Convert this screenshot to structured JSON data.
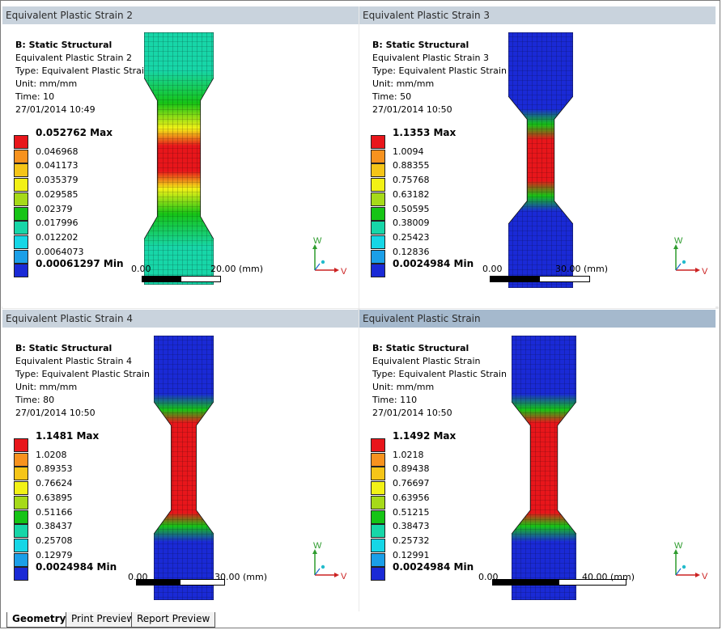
{
  "panes": [
    {
      "title": "Equivalent Plastic Strain 2",
      "system": "B: Static Structural",
      "result": "Equivalent Plastic Strain 2",
      "type": "Type: Equivalent Plastic Strain",
      "unit": "Unit: mm/mm",
      "time": "Time: 10",
      "date": "27/01/2014 10:49",
      "legend": [
        "0.052762 Max",
        "0.046968",
        "0.041173",
        "0.035379",
        "0.029585",
        "0.02379",
        "0.017996",
        "0.012202",
        "0.0064073",
        "0.00061297 Min"
      ],
      "scale_start": "0.00",
      "scale_end": "20.00 (mm)",
      "contour": "uniform",
      "active": false
    },
    {
      "title": "Equivalent Plastic Strain 3",
      "system": "B: Static Structural",
      "result": "Equivalent Plastic Strain 3",
      "type": "Type: Equivalent Plastic Strain",
      "unit": "Unit: mm/mm",
      "time": "Time: 50",
      "date": "27/01/2014 10:50",
      "legend": [
        "1.1353 Max",
        "1.0094",
        "0.88355",
        "0.75768",
        "0.63182",
        "0.50595",
        "0.38009",
        "0.25423",
        "0.12836",
        "0.0024984 Min"
      ],
      "scale_start": "0.00",
      "scale_end": "30.00 (mm)",
      "contour": "necking",
      "active": false
    },
    {
      "title": "Equivalent Plastic Strain 4",
      "system": "B: Static Structural",
      "result": "Equivalent Plastic Strain 4",
      "type": "Type: Equivalent Plastic Strain",
      "unit": "Unit: mm/mm",
      "time": "Time: 80",
      "date": "27/01/2014 10:50",
      "legend": [
        "1.1481 Max",
        "1.0208",
        "0.89353",
        "0.76624",
        "0.63895",
        "0.51166",
        "0.38437",
        "0.25708",
        "0.12979",
        "0.0024984 Min"
      ],
      "scale_start": "0.00",
      "scale_end": "30.00 (mm)",
      "contour": "necking",
      "active": false
    },
    {
      "title": "Equivalent Plastic Strain",
      "system": "B: Static Structural",
      "result": "Equivalent Plastic Strain",
      "type": "Type: Equivalent Plastic Strain",
      "unit": "Unit: mm/mm",
      "time": "Time: 110",
      "date": "27/01/2014 10:50",
      "legend": [
        "1.1492 Max",
        "1.0218",
        "0.89438",
        "0.76697",
        "0.63956",
        "0.51215",
        "0.38473",
        "0.25732",
        "0.12991",
        "0.0024984 Min"
      ],
      "scale_start": "0.00",
      "scale_end": "40.00 (mm)",
      "contour": "necking",
      "active": true
    }
  ],
  "legend_colors": [
    "#e8161b",
    "#f7921e",
    "#f5c518",
    "#f2f116",
    "#a6da19",
    "#16c416",
    "#17d6a8",
    "#16d6e6",
    "#1b9fe8",
    "#1a2ad6"
  ],
  "triad": {
    "up": "W",
    "right": "V",
    "up_color": "#2e9c2e",
    "right_color": "#cc2222"
  },
  "tabs": [
    "Geometry",
    "Print Preview",
    "Report Preview"
  ]
}
